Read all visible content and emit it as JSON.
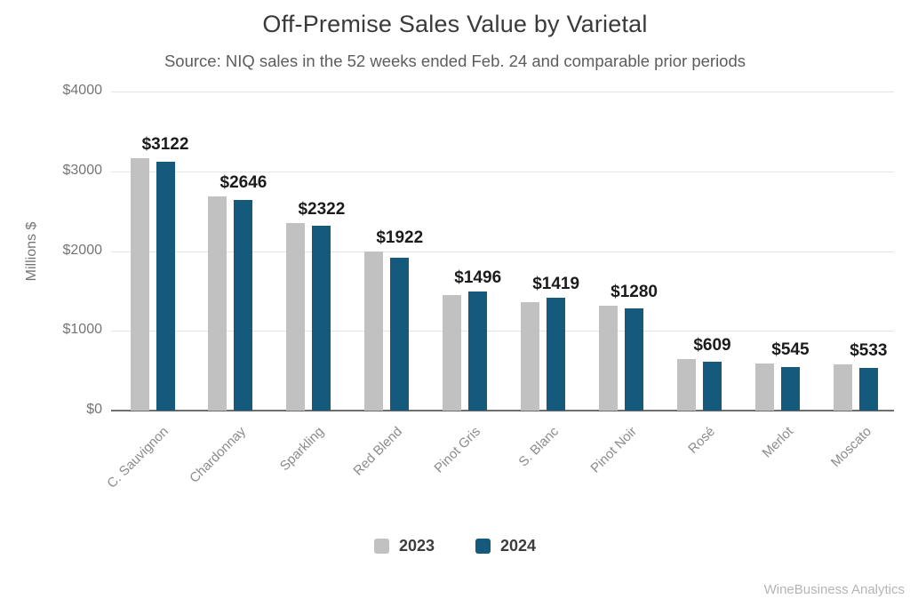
{
  "chart": {
    "title": "Off-Premise Sales Value by Varietal",
    "subtitle": "Source: NIQ sales in the 52 weeks ended Feb. 24 and comparable prior periods",
    "footer": "WineBusiness Analytics"
  },
  "chart_data": {
    "type": "bar",
    "title": "Off-Premise Sales Value by Varietal",
    "subtitle": "Source: NIQ sales in the 52 weeks ended Feb. 24 and comparable prior periods",
    "ylabel": "Millions $",
    "ylim": [
      0,
      4000
    ],
    "yticks": [
      0,
      1000,
      2000,
      3000,
      4000
    ],
    "ytick_labels": [
      "$0",
      "$1000",
      "$2000",
      "$3000",
      "$4000"
    ],
    "grid": true,
    "legend_position": "bottom",
    "categories": [
      "C. Sauvignon",
      "Chardonnay",
      "Sparkling",
      "Red Blend",
      "Pinot Gris",
      "S. Blanc",
      "Pinot Noir",
      "Rosé",
      "Merlot",
      "Moscato"
    ],
    "series": [
      {
        "name": "2023",
        "color": "#c1c1c1",
        "values": [
          3165,
          2680,
          2350,
          2000,
          1445,
          1360,
          1310,
          650,
          590,
          575
        ]
      },
      {
        "name": "2024",
        "color": "#15597d",
        "values": [
          3122,
          2646,
          2322,
          1922,
          1496,
          1419,
          1280,
          609,
          545,
          533
        ]
      }
    ],
    "data_labels": {
      "series": "2024",
      "values": [
        "$3122",
        "$2646",
        "$2322",
        "$1922",
        "$1496",
        "$1419",
        "$1280",
        "$609",
        "$545",
        "$533"
      ]
    },
    "footer": "WineBusiness Analytics"
  }
}
